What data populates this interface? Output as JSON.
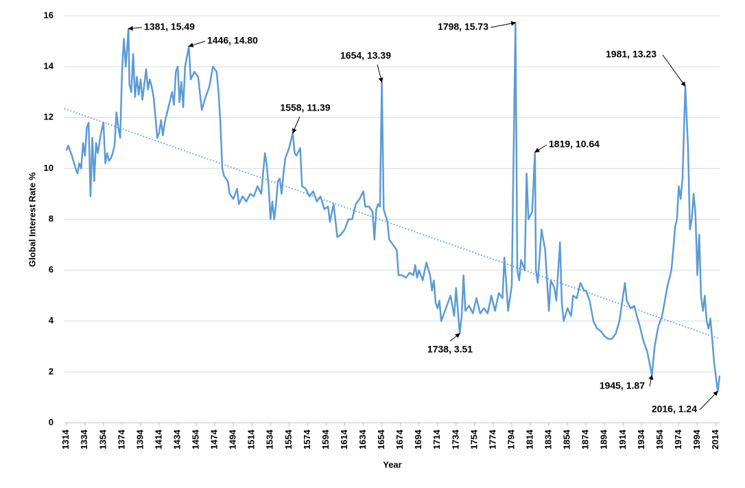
{
  "chart_data": {
    "type": "line",
    "x_label": "Year",
    "y_label": "Global Interest Rate %",
    "xlim": [
      1312,
      2018
    ],
    "ylim": [
      0,
      16
    ],
    "yticks": [
      0,
      2,
      4,
      6,
      8,
      10,
      12,
      14,
      16
    ],
    "xticks": [
      1314,
      1334,
      1354,
      1374,
      1394,
      1414,
      1434,
      1454,
      1474,
      1494,
      1514,
      1534,
      1554,
      1574,
      1594,
      1614,
      1634,
      1654,
      1674,
      1694,
      1714,
      1734,
      1754,
      1774,
      1794,
      1814,
      1834,
      1854,
      1874,
      1894,
      1914,
      1934,
      1954,
      1974,
      1994,
      2014
    ],
    "grid": true,
    "series": [
      {
        "color": "#5b9bd5",
        "x": [
          1314,
          1316,
          1320,
          1324,
          1326,
          1328,
          1330,
          1332,
          1334,
          1336,
          1338,
          1340,
          1342,
          1344,
          1346,
          1348,
          1350,
          1352,
          1354,
          1356,
          1358,
          1360,
          1362,
          1364,
          1366,
          1368,
          1370,
          1372,
          1374,
          1376,
          1378,
          1381,
          1382,
          1384,
          1386,
          1388,
          1390,
          1392,
          1394,
          1396,
          1398,
          1400,
          1402,
          1404,
          1406,
          1408,
          1410,
          1412,
          1414,
          1416,
          1418,
          1420,
          1424,
          1428,
          1430,
          1432,
          1434,
          1436,
          1438,
          1440,
          1442,
          1446,
          1448,
          1452,
          1456,
          1460,
          1464,
          1468,
          1472,
          1476,
          1478,
          1480,
          1482,
          1484,
          1488,
          1490,
          1494,
          1498,
          1500,
          1504,
          1508,
          1512,
          1516,
          1520,
          1524,
          1528,
          1530,
          1532,
          1534,
          1536,
          1538,
          1540,
          1542,
          1544,
          1546,
          1548,
          1550,
          1554,
          1558,
          1560,
          1562,
          1566,
          1568,
          1572,
          1576,
          1580,
          1584,
          1588,
          1592,
          1596,
          1598,
          1602,
          1606,
          1610,
          1614,
          1618,
          1622,
          1626,
          1630,
          1634,
          1636,
          1640,
          1644,
          1646,
          1648,
          1650,
          1652,
          1654,
          1656,
          1660,
          1662,
          1666,
          1670,
          1672,
          1676,
          1680,
          1684,
          1688,
          1690,
          1692,
          1694,
          1698,
          1702,
          1706,
          1708,
          1710,
          1712,
          1714,
          1716,
          1718,
          1720,
          1724,
          1728,
          1732,
          1734,
          1738,
          1740,
          1742,
          1744,
          1748,
          1752,
          1756,
          1760,
          1764,
          1768,
          1772,
          1776,
          1780,
          1784,
          1786,
          1788,
          1790,
          1794,
          1798,
          1800,
          1802,
          1804,
          1808,
          1810,
          1812,
          1816,
          1819,
          1820,
          1822,
          1826,
          1830,
          1834,
          1836,
          1840,
          1842,
          1846,
          1848,
          1850,
          1854,
          1858,
          1860,
          1864,
          1868,
          1872,
          1874,
          1878,
          1882,
          1886,
          1890,
          1894,
          1898,
          1902,
          1906,
          1910,
          1914,
          1916,
          1918,
          1922,
          1926,
          1928,
          1932,
          1936,
          1940,
          1945,
          1948,
          1952,
          1956,
          1960,
          1962,
          1964,
          1966,
          1968,
          1970,
          1972,
          1974,
          1976,
          1978,
          1981,
          1984,
          1986,
          1988,
          1990,
          1992,
          1994,
          1996,
          1998,
          2000,
          2002,
          2004,
          2006,
          2008,
          2010,
          2012,
          2014,
          2016,
          2018
        ],
        "values": [
          10.7,
          10.9,
          10.5,
          10.0,
          9.8,
          10.2,
          10.0,
          11.0,
          10.5,
          11.6,
          11.8,
          8.9,
          11.2,
          9.5,
          11.0,
          10.6,
          11.1,
          11.5,
          11.8,
          10.2,
          10.6,
          10.3,
          10.4,
          10.6,
          10.9,
          12.2,
          11.6,
          11.2,
          13.8,
          15.1,
          14.0,
          15.49,
          13.3,
          13.0,
          14.5,
          12.8,
          13.6,
          12.9,
          13.5,
          12.7,
          13.3,
          13.9,
          13.1,
          13.5,
          13.2,
          12.8,
          12.0,
          11.2,
          11.4,
          11.9,
          11.3,
          11.8,
          12.4,
          13.0,
          12.5,
          13.8,
          14.0,
          12.6,
          13.4,
          12.4,
          14.0,
          14.8,
          13.5,
          13.8,
          13.6,
          12.3,
          12.8,
          13.2,
          14.0,
          13.8,
          13.0,
          11.8,
          10.0,
          9.7,
          9.5,
          9.0,
          8.8,
          9.2,
          8.6,
          8.9,
          8.7,
          9.0,
          8.9,
          9.3,
          9.0,
          10.6,
          10.1,
          9.3,
          8.0,
          8.7,
          8.0,
          8.6,
          9.5,
          9.6,
          9.0,
          9.8,
          10.4,
          10.8,
          11.39,
          10.6,
          10.5,
          10.8,
          9.3,
          9.2,
          8.9,
          9.1,
          8.7,
          8.9,
          8.4,
          8.5,
          7.9,
          8.6,
          7.3,
          7.4,
          7.6,
          8.0,
          8.0,
          8.6,
          8.8,
          9.1,
          8.5,
          8.5,
          8.3,
          7.2,
          8.4,
          8.6,
          8.5,
          13.39,
          8.4,
          7.9,
          7.2,
          7.0,
          6.8,
          5.8,
          5.8,
          5.7,
          5.9,
          5.8,
          6.2,
          5.7,
          6.0,
          5.6,
          6.3,
          5.8,
          5.2,
          5.6,
          4.7,
          4.5,
          4.8,
          4.0,
          4.2,
          4.6,
          5.0,
          4.2,
          5.3,
          3.51,
          4.2,
          5.8,
          4.4,
          4.6,
          4.3,
          4.9,
          4.3,
          4.5,
          4.3,
          5.0,
          4.4,
          5.1,
          4.9,
          6.5,
          5.5,
          4.4,
          5.4,
          15.73,
          6.0,
          5.6,
          6.4,
          6.0,
          9.8,
          8.0,
          8.3,
          10.64,
          6.0,
          5.5,
          7.6,
          6.8,
          4.4,
          5.6,
          5.3,
          4.8,
          7.1,
          4.7,
          4.0,
          4.5,
          4.2,
          5.0,
          4.9,
          5.5,
          5.2,
          5.2,
          4.8,
          4.0,
          3.7,
          3.6,
          3.4,
          3.3,
          3.3,
          3.5,
          4.0,
          5.0,
          5.5,
          4.8,
          4.5,
          4.6,
          4.3,
          3.8,
          3.2,
          2.8,
          1.87,
          3.0,
          3.8,
          4.2,
          5.0,
          5.4,
          5.7,
          6.0,
          6.8,
          7.7,
          8.0,
          9.3,
          8.8,
          9.6,
          13.23,
          10.8,
          7.6,
          8.0,
          9.0,
          8.2,
          5.8,
          7.4,
          5.0,
          4.4,
          5.0,
          4.0,
          3.7,
          4.1,
          3.3,
          2.4,
          1.8,
          1.24,
          1.85
        ]
      }
    ],
    "trendline": {
      "color": "#5b9bd5",
      "x": [
        1312,
        2018
      ],
      "values": [
        12.35,
        3.3
      ]
    },
    "annotations": [
      {
        "text": "1381, 15.49",
        "x": 1381,
        "y": 15.49
      },
      {
        "text": "1446, 14.80",
        "x": 1446,
        "y": 14.8
      },
      {
        "text": "1558, 11.39",
        "x": 1558,
        "y": 11.39
      },
      {
        "text": "1654, 13.39",
        "x": 1654,
        "y": 13.39
      },
      {
        "text": "1738, 3.51",
        "x": 1738,
        "y": 3.51
      },
      {
        "text": "1798, 15.73",
        "x": 1798,
        "y": 15.73
      },
      {
        "text": "1819, 10.64",
        "x": 1819,
        "y": 10.64
      },
      {
        "text": "1981, 13.23",
        "x": 1981,
        "y": 13.23
      },
      {
        "text": "1945, 1.87",
        "x": 1945,
        "y": 1.87
      },
      {
        "text": "2016, 1.24",
        "x": 2016,
        "y": 1.24
      }
    ]
  }
}
